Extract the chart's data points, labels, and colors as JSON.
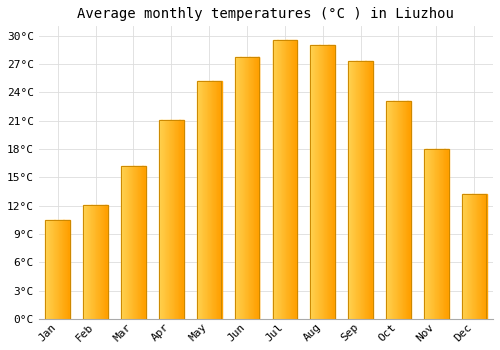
{
  "title": "Average monthly temperatures (°C ) in Liuzhou",
  "months": [
    "Jan",
    "Feb",
    "Mar",
    "Apr",
    "May",
    "Jun",
    "Jul",
    "Aug",
    "Sep",
    "Oct",
    "Nov",
    "Dec"
  ],
  "values": [
    10.5,
    12.1,
    16.2,
    21.1,
    25.2,
    27.7,
    29.5,
    29.0,
    27.3,
    23.1,
    18.0,
    13.2
  ],
  "bar_color_left": "#FFD060",
  "bar_color_right": "#FFA020",
  "bar_edge_color": "#CC8800",
  "background_color": "#FFFFFF",
  "grid_color": "#DDDDDD",
  "ylim": [
    0,
    31
  ],
  "yticks": [
    0,
    3,
    6,
    9,
    12,
    15,
    18,
    21,
    24,
    27,
    30
  ],
  "ytick_labels": [
    "0°C",
    "3°C",
    "6°C",
    "9°C",
    "12°C",
    "15°C",
    "18°C",
    "21°C",
    "24°C",
    "27°C",
    "30°C"
  ],
  "title_fontsize": 10,
  "tick_fontsize": 8,
  "font_family": "monospace",
  "bar_width": 0.65
}
